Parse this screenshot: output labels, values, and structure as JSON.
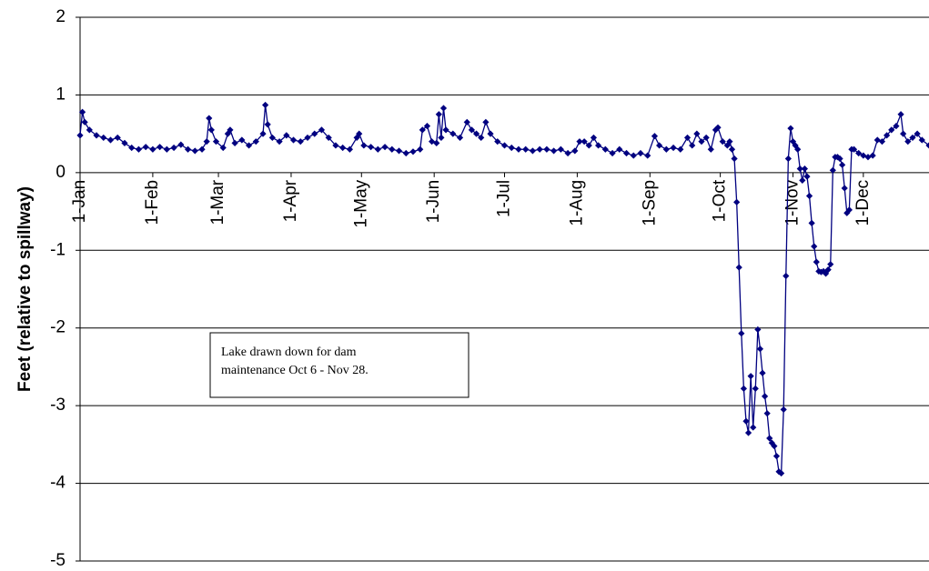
{
  "chart_data": {
    "type": "line",
    "y_label": "Feet (relative to spillway)",
    "annotation": [
      "Lake drawn down for dam",
      "maintenance Oct 6 - Nov 28."
    ],
    "xlim": [
      1,
      363
    ],
    "xticks": [
      {
        "value": 1,
        "label": "1-Jan"
      },
      {
        "value": 32,
        "label": "1-Feb"
      },
      {
        "value": 60,
        "label": "1-Mar"
      },
      {
        "value": 91,
        "label": "1-Apr"
      },
      {
        "value": 121,
        "label": "1-May"
      },
      {
        "value": 152,
        "label": "1-Jun"
      },
      {
        "value": 182,
        "label": "1-Jul"
      },
      {
        "value": 213,
        "label": "1-Aug"
      },
      {
        "value": 244,
        "label": "1-Sep"
      },
      {
        "value": 274,
        "label": "1-Oct"
      },
      {
        "value": 305,
        "label": "1-Nov"
      },
      {
        "value": 335,
        "label": "1-Dec"
      }
    ],
    "ylim": [
      -5,
      2
    ],
    "yticks": [
      2,
      1,
      0,
      -1,
      -2,
      -3,
      -4,
      -5
    ],
    "grid": true,
    "series": [
      {
        "color": "#000080",
        "x": [
          1,
          2,
          3,
          5,
          8,
          11,
          14,
          17,
          20,
          23,
          26,
          29,
          32,
          35,
          38,
          41,
          44,
          47,
          50,
          53,
          55,
          56,
          57,
          59,
          62,
          64,
          65,
          67,
          70,
          73,
          76,
          79,
          80,
          81,
          83,
          86,
          89,
          92,
          95,
          98,
          101,
          104,
          107,
          110,
          113,
          116,
          119,
          120,
          122,
          125,
          128,
          131,
          134,
          137,
          140,
          143,
          146,
          147,
          149,
          151,
          153,
          154,
          155,
          156,
          157,
          160,
          163,
          166,
          168,
          170,
          172,
          174,
          176,
          179,
          182,
          185,
          188,
          191,
          194,
          197,
          200,
          203,
          206,
          209,
          212,
          214,
          216,
          218,
          220,
          222,
          225,
          228,
          231,
          234,
          237,
          240,
          243,
          246,
          248,
          251,
          254,
          257,
          260,
          262,
          264,
          266,
          268,
          270,
          272,
          273,
          275,
          277,
          278,
          279,
          280,
          281,
          282,
          283,
          284,
          285,
          286,
          287,
          288,
          289,
          290,
          291,
          292,
          293,
          294,
          295,
          296,
          297,
          298,
          299,
          300,
          301,
          302,
          303,
          304,
          305,
          306,
          307,
          308,
          309,
          310,
          311,
          312,
          313,
          314,
          315,
          316,
          317,
          318,
          319,
          320,
          321,
          322,
          323,
          324,
          325,
          326,
          327,
          328,
          329,
          330,
          331,
          333,
          335,
          337,
          339,
          341,
          343,
          345,
          347,
          349,
          351,
          352,
          354,
          356,
          358,
          360,
          363
        ],
        "values": [
          0.48,
          0.78,
          0.65,
          0.55,
          0.48,
          0.45,
          0.42,
          0.45,
          0.38,
          0.32,
          0.3,
          0.33,
          0.3,
          0.33,
          0.3,
          0.32,
          0.36,
          0.3,
          0.28,
          0.3,
          0.4,
          0.7,
          0.55,
          0.4,
          0.32,
          0.5,
          0.55,
          0.38,
          0.42,
          0.35,
          0.4,
          0.5,
          0.87,
          0.62,
          0.45,
          0.4,
          0.48,
          0.42,
          0.4,
          0.45,
          0.5,
          0.55,
          0.45,
          0.35,
          0.32,
          0.3,
          0.45,
          0.5,
          0.35,
          0.33,
          0.3,
          0.33,
          0.3,
          0.28,
          0.25,
          0.27,
          0.3,
          0.55,
          0.6,
          0.4,
          0.38,
          0.75,
          0.45,
          0.83,
          0.55,
          0.5,
          0.45,
          0.65,
          0.55,
          0.5,
          0.45,
          0.65,
          0.5,
          0.4,
          0.35,
          0.32,
          0.3,
          0.3,
          0.28,
          0.3,
          0.3,
          0.28,
          0.3,
          0.25,
          0.28,
          0.4,
          0.4,
          0.35,
          0.45,
          0.35,
          0.3,
          0.25,
          0.3,
          0.25,
          0.22,
          0.25,
          0.22,
          0.47,
          0.35,
          0.3,
          0.32,
          0.3,
          0.45,
          0.35,
          0.5,
          0.4,
          0.45,
          0.3,
          0.55,
          0.58,
          0.4,
          0.35,
          0.4,
          0.3,
          0.18,
          -0.38,
          -1.22,
          -2.07,
          -2.78,
          -3.2,
          -3.35,
          -2.62,
          -3.28,
          -2.78,
          -2.02,
          -2.27,
          -2.58,
          -2.88,
          -3.1,
          -3.42,
          -3.48,
          -3.52,
          -3.65,
          -3.85,
          -3.87,
          -3.05,
          -1.33,
          0.18,
          0.57,
          0.4,
          0.35,
          0.3,
          0.05,
          -0.1,
          0.05,
          -0.05,
          -0.3,
          -0.65,
          -0.95,
          -1.15,
          -1.27,
          -1.28,
          -1.27,
          -1.3,
          -1.25,
          -1.18,
          0.03,
          0.2,
          0.2,
          0.18,
          0.1,
          -0.2,
          -0.52,
          -0.48,
          0.3,
          0.3,
          0.25,
          0.22,
          0.2,
          0.22,
          0.42,
          0.4,
          0.48,
          0.55,
          0.6,
          0.75,
          0.5,
          0.4,
          0.45,
          0.5,
          0.42,
          0.35
        ]
      }
    ]
  }
}
